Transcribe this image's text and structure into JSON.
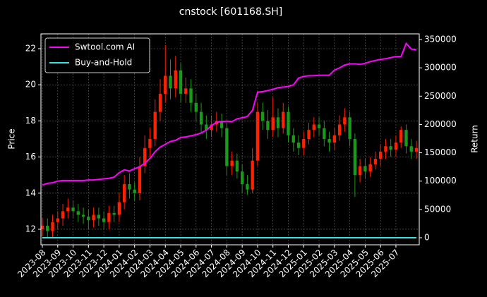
{
  "chart_data": {
    "type": "candlestick",
    "title": "cnstock [601168.SH]",
    "ylabel": "Price",
    "y2label": "Return",
    "categories": [
      "2023-08",
      null,
      null,
      "2023-09",
      null,
      null,
      "2023-10",
      null,
      null,
      "2023-11",
      null,
      null,
      "2023-12",
      null,
      null,
      "2024-01",
      null,
      null,
      "2024-02",
      null,
      null,
      "2024-03",
      null,
      null,
      "2024-04",
      null,
      null,
      "2024-05",
      null,
      null,
      "2024-06",
      null,
      null,
      "2024-07",
      null,
      null,
      "2024-08",
      null,
      null,
      "2024-09",
      null,
      null,
      "2024-10",
      null,
      null,
      "2024-11",
      null,
      null,
      "2024-12",
      null,
      null,
      "2025-01",
      null,
      null,
      "2025-02",
      null,
      null,
      "2025-03",
      null,
      null,
      "2025-04",
      null,
      null,
      "2025-05",
      null,
      null,
      "2025-06",
      null,
      null,
      "2025-07",
      null,
      null,
      null,
      null
    ],
    "open": [
      12.0,
      12.2,
      11.9,
      12.4,
      12.6,
      13.0,
      13.2,
      13.0,
      12.8,
      12.7,
      12.5,
      12.8,
      12.6,
      12.4,
      12.9,
      12.8,
      13.5,
      14.5,
      14.2,
      14.0,
      15.5,
      16.5,
      17.0,
      18.5,
      19.5,
      20.5,
      19.8,
      20.8,
      19.5,
      19.8,
      19.0,
      18.5,
      17.8,
      17.5,
      17.8,
      18.0,
      17.6,
      15.5,
      15.8,
      15.2,
      14.5,
      14.2,
      15.8,
      18.5,
      18.0,
      17.5,
      18.2,
      17.6,
      18.5,
      17.2,
      16.8,
      16.5,
      17.0,
      17.5,
      17.8,
      17.6,
      17.0,
      16.8,
      17.2,
      17.8,
      18.2,
      17.0,
      15.0,
      15.5,
      15.2,
      15.6,
      15.9,
      16.3,
      16.6,
      16.4,
      16.8,
      17.5,
      16.6,
      16.3
    ],
    "high": [
      12.6,
      12.6,
      12.8,
      13.0,
      13.4,
      13.7,
      13.6,
      13.4,
      13.2,
      13.1,
      13.2,
      13.2,
      13.0,
      13.3,
      13.3,
      14.0,
      15.0,
      15.1,
      14.6,
      16.0,
      17.2,
      17.6,
      19.2,
      20.3,
      22.2,
      21.4,
      21.6,
      21.2,
      20.4,
      20.3,
      19.5,
      19.0,
      18.3,
      18.3,
      18.5,
      18.4,
      17.9,
      16.3,
      16.2,
      15.6,
      15.0,
      16.5,
      19.0,
      19.0,
      18.6,
      19.3,
      18.7,
      19.0,
      18.8,
      17.6,
      17.2,
      17.4,
      17.9,
      18.2,
      18.2,
      18.0,
      17.4,
      17.6,
      18.3,
      18.7,
      18.5,
      17.3,
      15.9,
      15.9,
      16.0,
      16.3,
      16.7,
      17.0,
      17.0,
      17.2,
      17.7,
      17.8,
      17.0,
      16.9
    ],
    "low": [
      11.6,
      11.5,
      11.5,
      12.0,
      12.2,
      12.6,
      12.6,
      12.4,
      12.3,
      12.0,
      12.1,
      12.2,
      12.0,
      12.0,
      12.4,
      12.4,
      13.1,
      13.7,
      13.6,
      13.6,
      15.1,
      16.0,
      16.6,
      18.0,
      19.0,
      19.2,
      19.3,
      19.0,
      19.0,
      18.5,
      18.0,
      17.3,
      17.0,
      17.1,
      17.4,
      17.1,
      15.0,
      15.0,
      14.8,
      14.0,
      13.9,
      14.0,
      15.5,
      17.5,
      17.0,
      17.1,
      17.1,
      17.3,
      16.8,
      16.3,
      16.1,
      16.1,
      16.7,
      17.1,
      17.2,
      16.6,
      16.3,
      16.4,
      16.9,
      17.4,
      16.6,
      13.8,
      14.6,
      14.8,
      14.9,
      15.3,
      15.5,
      15.9,
      16.0,
      16.0,
      16.5,
      16.2,
      15.9,
      15.9
    ],
    "close": [
      12.2,
      11.9,
      12.4,
      12.6,
      13.0,
      13.2,
      13.0,
      12.8,
      12.7,
      12.5,
      12.8,
      12.6,
      12.4,
      12.9,
      12.8,
      13.5,
      14.5,
      14.2,
      14.0,
      15.5,
      16.5,
      17.0,
      18.5,
      19.5,
      20.5,
      19.8,
      20.8,
      19.5,
      19.8,
      19.0,
      18.5,
      17.8,
      17.5,
      17.8,
      18.0,
      17.6,
      15.5,
      15.8,
      15.2,
      14.5,
      14.2,
      15.8,
      18.5,
      18.0,
      17.5,
      18.2,
      17.6,
      18.5,
      17.2,
      16.8,
      16.5,
      17.0,
      17.5,
      17.8,
      17.6,
      17.0,
      16.8,
      17.2,
      17.8,
      18.2,
      17.0,
      15.0,
      15.5,
      15.2,
      15.6,
      15.9,
      16.3,
      16.6,
      16.4,
      16.8,
      17.5,
      16.6,
      16.3,
      16.5
    ],
    "up_color": "#ff2200",
    "down_color": "#1a9a1a",
    "series": [
      {
        "name": "Swtool.com AI",
        "color": "#ff00ff",
        "axis": "y2",
        "values": [
          93000,
          96000,
          97000,
          100000,
          101000,
          101000,
          101000,
          101000,
          101000,
          102000,
          102000,
          103000,
          104000,
          105000,
          107000,
          115000,
          120000,
          118000,
          122000,
          125000,
          132000,
          140000,
          152000,
          160000,
          165000,
          170000,
          172000,
          177000,
          178000,
          180000,
          182000,
          185000,
          190000,
          198000,
          204000,
          205000,
          206000,
          205000,
          210000,
          212000,
          214000,
          225000,
          257000,
          258000,
          260000,
          262000,
          265000,
          266000,
          267000,
          270000,
          282000,
          285000,
          286000,
          286000,
          287000,
          287000,
          287000,
          296000,
          300000,
          305000,
          307000,
          307000,
          306000,
          308000,
          311000,
          313000,
          315000,
          316000,
          318000,
          320000,
          320000,
          343000,
          333000,
          332000
        ]
      },
      {
        "name": "Buy-and-Hold",
        "color": "#33e6e6",
        "axis": "y2",
        "values": [
          0,
          0,
          0,
          0,
          0,
          0,
          0,
          0,
          0,
          0,
          0,
          0,
          0,
          0,
          0,
          0,
          0,
          0,
          0,
          0,
          0,
          0,
          0,
          0,
          0,
          0,
          0,
          0,
          0,
          0,
          0,
          0,
          0,
          0,
          0,
          0,
          0,
          0,
          0,
          0,
          0,
          0,
          0,
          0,
          0,
          0,
          0,
          0,
          0,
          0,
          0,
          0,
          0,
          0,
          0,
          0,
          0,
          0,
          0,
          0,
          0,
          0,
          0,
          0,
          0,
          0,
          0,
          0,
          0,
          0,
          0,
          0,
          0,
          0
        ]
      }
    ],
    "ylim": [
      11.14,
      22.82
    ],
    "yticks": [
      12,
      14,
      16,
      18,
      20,
      22
    ],
    "y2lim": [
      -12450,
      359960
    ],
    "y2ticks": [
      0,
      50000,
      100000,
      150000,
      200000,
      250000,
      300000,
      350000
    ],
    "grid": true,
    "legend": "upper left"
  }
}
